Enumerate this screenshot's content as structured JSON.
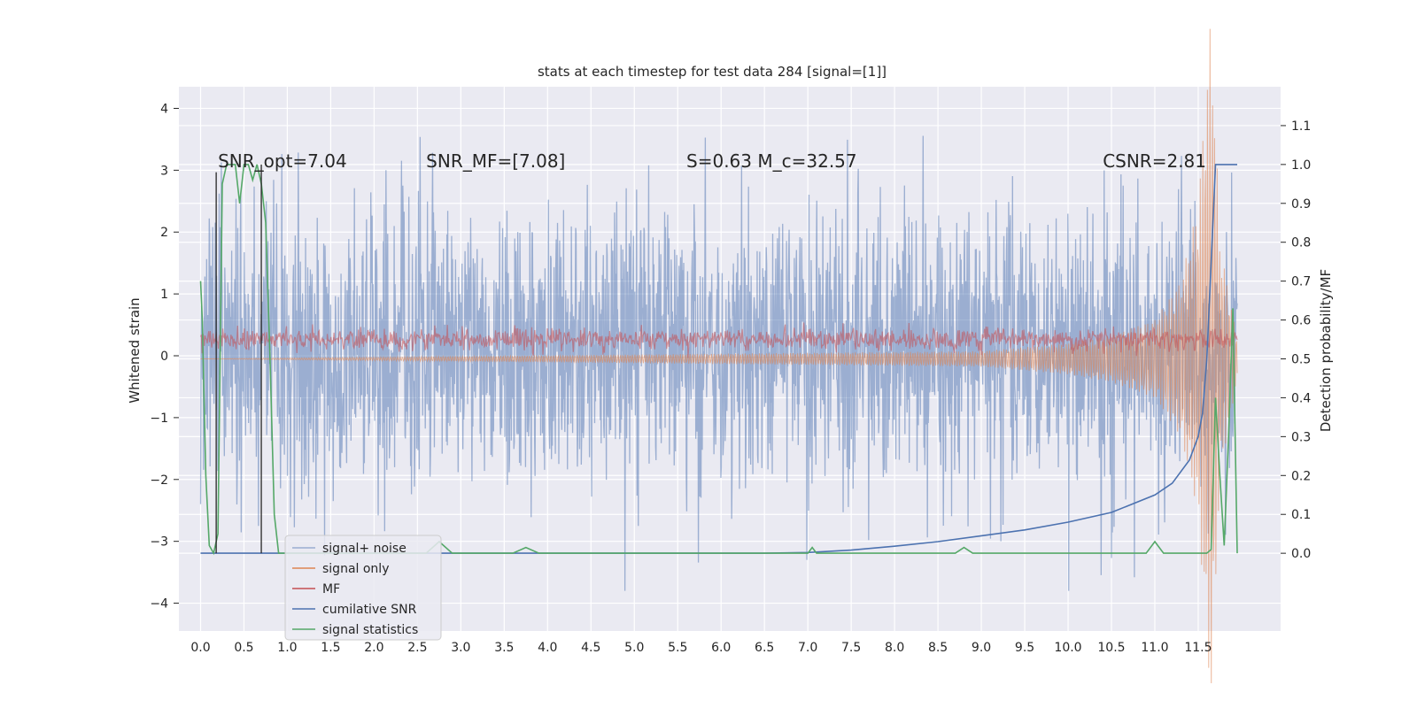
{
  "chart_data": {
    "type": "line",
    "title": "stats at each timestep for test data 284 [signal=[1]]",
    "ylabel": "Whitened strain",
    "ylabel_right": "Detection probability/MF",
    "xlim": [
      -0.25,
      12.45
    ],
    "ylim": [
      -4.45,
      4.35
    ],
    "ylim_right": [
      -0.2,
      1.2
    ],
    "x_ticks": [
      "0.0",
      "0.5",
      "1.0",
      "1.5",
      "2.0",
      "2.5",
      "3.0",
      "3.5",
      "4.0",
      "4.5",
      "5.0",
      "5.5",
      "6.0",
      "6.5",
      "7.0",
      "7.5",
      "8.0",
      "8.5",
      "9.0",
      "9.5",
      "10.0",
      "10.5",
      "11.0",
      "11.5"
    ],
    "y_ticks": [
      "4",
      "3",
      "2",
      "1",
      "0",
      "−1",
      "−2",
      "−3",
      "−4"
    ],
    "y_ticks_right": [
      "1.1",
      "1.0",
      "0.9",
      "0.8",
      "0.7",
      "0.6",
      "0.5",
      "0.4",
      "0.3",
      "0.2",
      "0.1",
      "0.0"
    ],
    "grid": true,
    "annotations": [
      {
        "text": "SNR_opt=7.04",
        "x": 0.2,
        "y": 3.05
      },
      {
        "text": "SNR_MF=[7.08]",
        "x": 2.6,
        "y": 3.05
      },
      {
        "text": "S=0.63   M_c=32.57",
        "x": 5.6,
        "y": 3.05
      },
      {
        "text": "CSNR=2.81",
        "x": 10.4,
        "y": 3.05
      }
    ],
    "legend": {
      "placement": "lower-left",
      "entries": [
        "signal+ noise",
        "signal only",
        "MF",
        "cumilative SNR",
        "signal statistics"
      ]
    },
    "series": [
      {
        "name": "signal+ noise",
        "axis": "left",
        "color": "#4c72b0",
        "alpha": 0.5,
        "description": "Gaussian-like whitened noise spanning roughly ±3.5 over 0–11.95",
        "x_range": [
          0.0,
          11.95
        ],
        "typical_range": [
          -2.4,
          2.6
        ],
        "extremes": [
          -3.8,
          4.0
        ]
      },
      {
        "name": "signal only",
        "axis": "right",
        "color": "#dd8452",
        "description": "chirp near zero growing to ±0.9 at ~11.7",
        "x": [
          0.0,
          9.0,
          10.0,
          10.5,
          11.0,
          11.3,
          11.5,
          11.65,
          11.75,
          11.95
        ],
        "envelope": [
          0.0,
          0.02,
          0.04,
          0.06,
          0.1,
          0.2,
          0.4,
          0.9,
          0.3,
          0.05
        ]
      },
      {
        "name": "MF",
        "axis": "right",
        "color": "#c44e52",
        "description": "matched filter output fluctuating around 0.55",
        "x_range": [
          0.0,
          11.95
        ],
        "mean": 0.55,
        "spread": [
          0.5,
          0.61
        ]
      },
      {
        "name": "cumilative SNR",
        "axis": "right",
        "color": "#4c72b0",
        "x": [
          0.0,
          6.5,
          7.0,
          7.5,
          8.0,
          8.5,
          9.0,
          9.5,
          10.0,
          10.5,
          11.0,
          11.2,
          11.4,
          11.5,
          11.55,
          11.6,
          11.65,
          11.7,
          11.95
        ],
        "y": [
          0.0,
          0.0,
          0.002,
          0.008,
          0.018,
          0.03,
          0.045,
          0.06,
          0.08,
          0.105,
          0.15,
          0.18,
          0.24,
          0.3,
          0.36,
          0.5,
          0.75,
          1.0,
          1.0
        ]
      },
      {
        "name": "signal statistics",
        "axis": "right",
        "color": "#55a868",
        "x": [
          0.0,
          0.02,
          0.06,
          0.1,
          0.15,
          0.2,
          0.25,
          0.3,
          0.4,
          0.45,
          0.5,
          0.55,
          0.6,
          0.65,
          0.7,
          0.75,
          0.8,
          0.85,
          0.9,
          2.6,
          2.75,
          2.9,
          3.6,
          3.75,
          3.9,
          7.0,
          7.05,
          7.1,
          8.7,
          8.8,
          8.9,
          9.0,
          10.9,
          11.0,
          11.1,
          11.2,
          11.5,
          11.6,
          11.65,
          11.7,
          11.75,
          11.8,
          11.85,
          11.9,
          11.95
        ],
        "y": [
          0.7,
          0.6,
          0.2,
          0.02,
          0.0,
          0.05,
          0.95,
          1.0,
          1.0,
          0.9,
          1.0,
          1.0,
          0.96,
          1.0,
          0.95,
          0.85,
          0.5,
          0.1,
          0.0,
          0.0,
          0.03,
          0.0,
          0.0,
          0.015,
          0.0,
          0.0,
          0.015,
          0.0,
          0.0,
          0.015,
          0.0,
          0.0,
          0.0,
          0.03,
          0.0,
          0.0,
          0.0,
          0.0,
          0.01,
          0.4,
          0.2,
          0.02,
          0.3,
          0.63,
          0.0
        ]
      }
    ],
    "vertical_lines": [
      {
        "x": 0.18,
        "y_right": [
          0.0,
          0.98
        ],
        "color": "#262626"
      },
      {
        "x": 0.7,
        "y_right": [
          0.0,
          1.0
        ],
        "color": "#262626"
      }
    ]
  }
}
